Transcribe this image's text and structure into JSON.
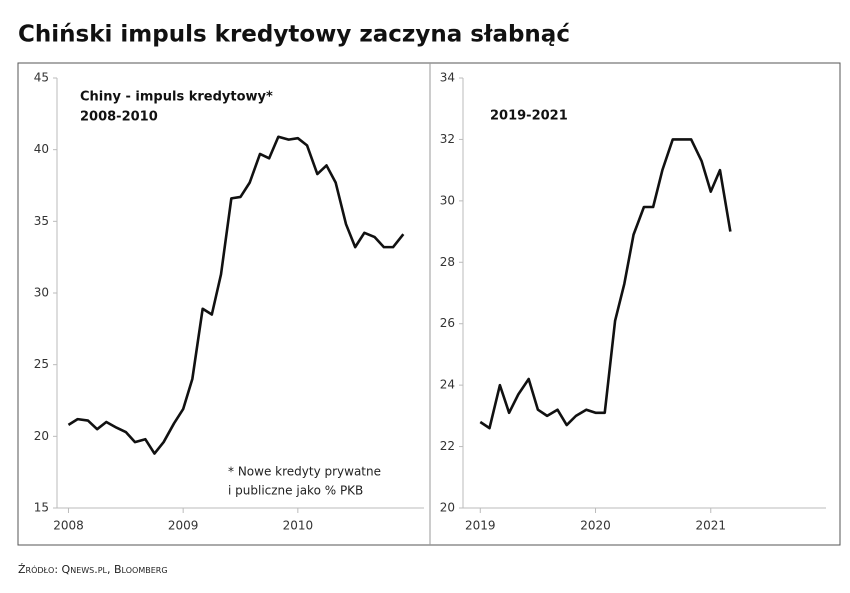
{
  "title": "Chiński impuls kredytowy zaczyna słabnąć",
  "source": "Źródło: Qnews.pl, Bloomberg",
  "chart_data": [
    {
      "type": "line",
      "annotations": [
        "Chiny - impuls kredytowy*",
        "2008-2010",
        "* Nowe kredyty prywatne",
        "i publiczne jako % PKB"
      ],
      "xlim": [
        2007.9,
        2011.1
      ],
      "xticks": [
        2008,
        2009,
        2010
      ],
      "ylim": [
        15,
        45
      ],
      "yticks": [
        15,
        20,
        25,
        30,
        35,
        40,
        45
      ],
      "x": [
        2008,
        2008.08,
        2008.17,
        2008.25,
        2008.33,
        2008.42,
        2008.5,
        2008.58,
        2008.67,
        2008.75,
        2008.83,
        2008.92,
        2009,
        2009.08,
        2009.17,
        2009.25,
        2009.33,
        2009.42,
        2009.5,
        2009.58,
        2009.67,
        2009.75,
        2009.83,
        2009.92,
        2010,
        2010.08,
        2010.17,
        2010.25,
        2010.33,
        2010.42,
        2010.5,
        2010.58,
        2010.67,
        2010.75,
        2010.83,
        2010.92
      ],
      "series": [
        {
          "color": "#111111",
          "values": [
            20.8,
            21.2,
            21.1,
            20.5,
            21.0,
            20.6,
            20.3,
            19.6,
            19.8,
            18.8,
            19.6,
            20.9,
            21.9,
            24.0,
            28.9,
            28.5,
            31.3,
            36.6,
            36.7,
            37.7,
            39.7,
            39.4,
            40.9,
            40.7,
            40.8,
            40.3,
            38.3,
            38.9,
            37.7,
            34.8,
            33.2,
            34.2,
            33.9,
            33.2,
            33.2,
            34.1
          ]
        }
      ]
    },
    {
      "type": "line",
      "annotations": [
        "2019-2021"
      ],
      "xlim": [
        2018.85,
        2022.0
      ],
      "xticks": [
        2019,
        2020,
        2021
      ],
      "ylim": [
        20,
        34
      ],
      "yticks": [
        20,
        22,
        24,
        26,
        28,
        30,
        32,
        34
      ],
      "x": [
        2019,
        2019.08,
        2019.17,
        2019.25,
        2019.33,
        2019.42,
        2019.5,
        2019.58,
        2019.67,
        2019.75,
        2019.83,
        2019.92,
        2020,
        2020.08,
        2020.17,
        2020.25,
        2020.33,
        2020.42,
        2020.5,
        2020.58,
        2020.67,
        2020.75,
        2020.83,
        2020.92,
        2021,
        2021.08,
        2021.17
      ],
      "series": [
        {
          "color": "#111111",
          "values": [
            22.8,
            22.6,
            24.0,
            23.1,
            23.7,
            24.2,
            23.2,
            23.0,
            23.2,
            22.7,
            23.0,
            23.2,
            23.1,
            23.1,
            26.1,
            27.3,
            28.9,
            29.8,
            29.8,
            31.0,
            32.0,
            32.0,
            32.0,
            31.3,
            30.3,
            31.0,
            29.0
          ]
        }
      ]
    }
  ]
}
